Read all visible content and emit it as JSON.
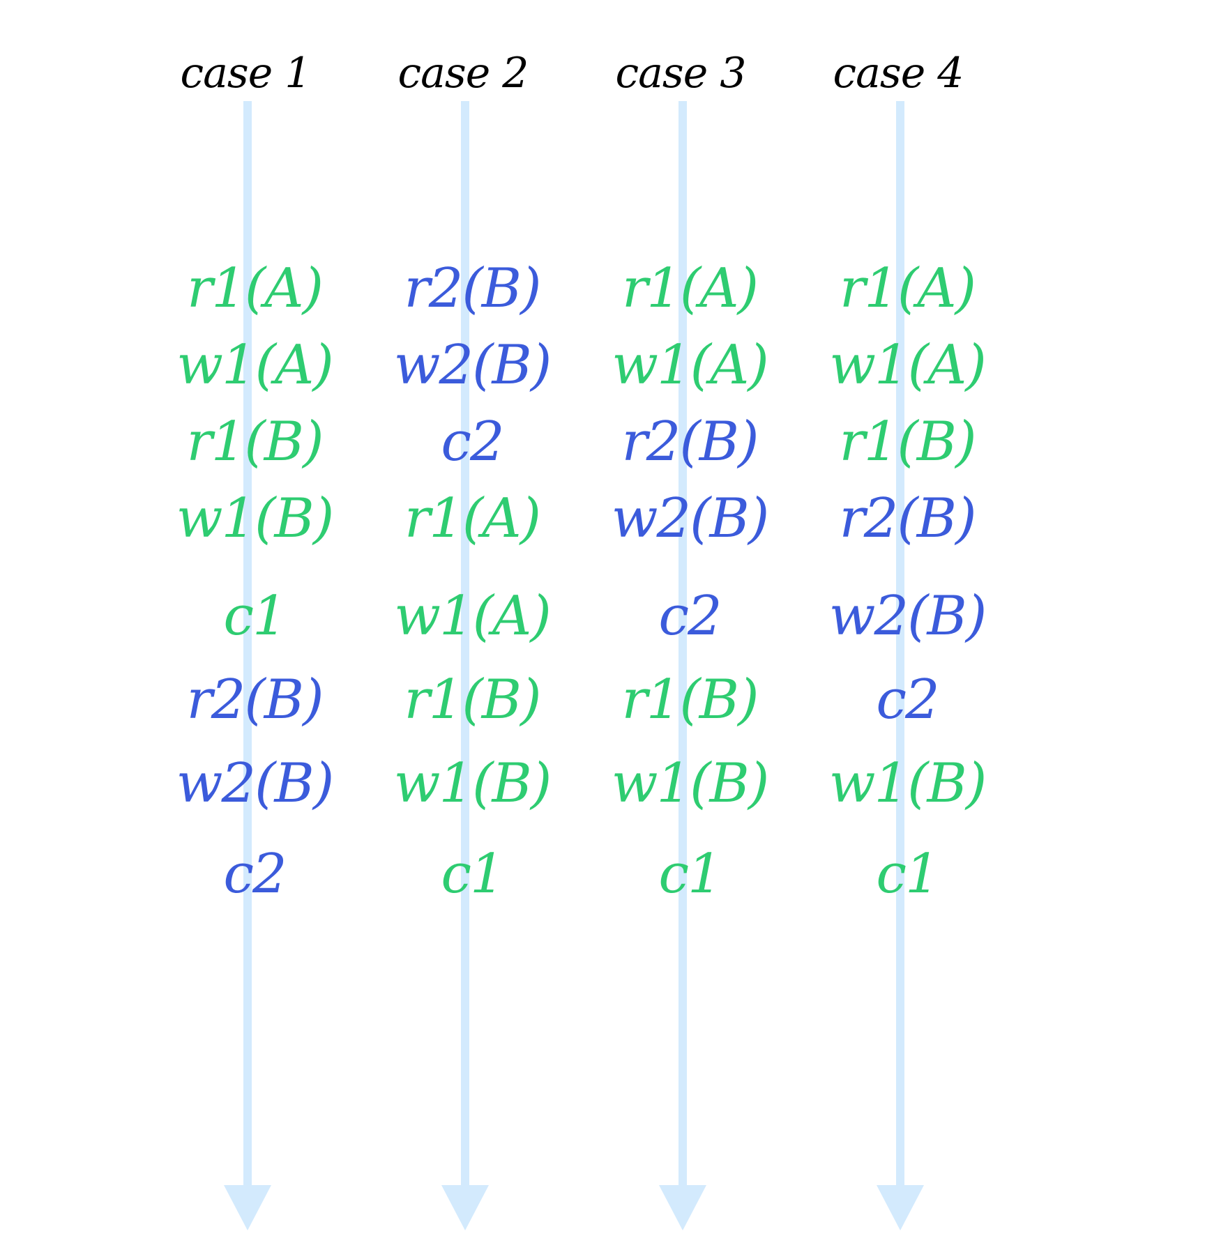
{
  "colors": {
    "timeline": "#d3eafd",
    "title": "#000000",
    "transaction_1": "#2ecc71",
    "transaction_2": "#3b5bdb"
  },
  "cases": [
    {
      "title": "case 1",
      "operations": [
        {
          "text": "r1(A)",
          "txn": 1
        },
        {
          "text": "w1(A)",
          "txn": 1
        },
        {
          "text": "r1(B)",
          "txn": 1
        },
        {
          "text": "w1(B)",
          "txn": 1
        },
        {
          "text": "c1",
          "txn": 1
        },
        {
          "text": "r2(B)",
          "txn": 2
        },
        {
          "text": "w2(B)",
          "txn": 2
        },
        {
          "text": "c2",
          "txn": 2
        }
      ]
    },
    {
      "title": "case 2",
      "operations": [
        {
          "text": "r2(B)",
          "txn": 2
        },
        {
          "text": "w2(B)",
          "txn": 2
        },
        {
          "text": "c2",
          "txn": 2
        },
        {
          "text": "r1(A)",
          "txn": 1
        },
        {
          "text": "w1(A)",
          "txn": 1
        },
        {
          "text": "r1(B)",
          "txn": 1
        },
        {
          "text": "w1(B)",
          "txn": 1
        },
        {
          "text": "c1",
          "txn": 1
        }
      ]
    },
    {
      "title": "case 3",
      "operations": [
        {
          "text": "r1(A)",
          "txn": 1
        },
        {
          "text": "w1(A)",
          "txn": 1
        },
        {
          "text": "r2(B)",
          "txn": 2
        },
        {
          "text": "w2(B)",
          "txn": 2
        },
        {
          "text": "c2",
          "txn": 2
        },
        {
          "text": "r1(B)",
          "txn": 1
        },
        {
          "text": "w1(B)",
          "txn": 1
        },
        {
          "text": "c1",
          "txn": 1
        }
      ]
    },
    {
      "title": "case 4",
      "operations": [
        {
          "text": "r1(A)",
          "txn": 1
        },
        {
          "text": "w1(A)",
          "txn": 1
        },
        {
          "text": "r1(B)",
          "txn": 1
        },
        {
          "text": "r2(B)",
          "txn": 2
        },
        {
          "text": "w2(B)",
          "txn": 2
        },
        {
          "text": "c2",
          "txn": 2
        },
        {
          "text": "w1(B)",
          "txn": 1
        },
        {
          "text": "c1",
          "txn": 1
        }
      ]
    }
  ]
}
